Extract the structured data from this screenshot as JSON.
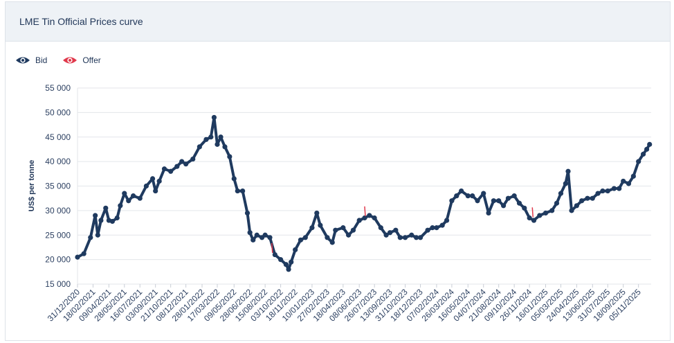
{
  "header": {
    "title": "LME Tin Official Prices curve"
  },
  "legend": [
    {
      "label": "Bid",
      "color": "#1f3a5f",
      "icon": "eye-icon"
    },
    {
      "label": "Offer",
      "color": "#e0384b",
      "icon": "eye-icon"
    }
  ],
  "colors": {
    "bid": "#1f3a5f",
    "offer": "#e0384b",
    "grid": "#e3e6ea"
  },
  "chart_data": {
    "type": "line",
    "title": "LME Tin Official Prices curve",
    "ylabel": "US$ per tonne",
    "xlabel": "",
    "ylim": [
      15000,
      55000
    ],
    "xlim": [
      "2020-12-31",
      "2025-12-15"
    ],
    "yticks": [
      "15 000",
      "20 000",
      "25 000",
      "30 000",
      "35 000",
      "40 000",
      "45 000",
      "50 000",
      "55 000"
    ],
    "yticks_values": [
      15000,
      20000,
      25000,
      30000,
      35000,
      40000,
      45000,
      50000,
      55000
    ],
    "xticks": [
      "31/12/2020",
      "18/02/2021",
      "09/04/2021",
      "28/05/2021",
      "16/07/2021",
      "03/09/2021",
      "21/10/2021",
      "08/12/2021",
      "28/01/2022",
      "17/03/2022",
      "09/05/2022",
      "28/06/2022",
      "15/08/2022",
      "03/10/2022",
      "18/11/2022",
      "10/01/2023",
      "27/02/2023",
      "18/04/2023",
      "08/06/2023",
      "26/07/2023",
      "13/09/2023",
      "31/10/2023",
      "18/12/2023",
      "07/02/2024",
      "26/03/2024",
      "16/05/2024",
      "04/07/2024",
      "21/08/2024",
      "09/10/2024",
      "26/11/2024",
      "16/01/2025",
      "05/03/2025",
      "24/04/2025",
      "13/06/2025",
      "31/07/2025",
      "18/09/2025",
      "05/11/2025"
    ],
    "grid": true,
    "legend_position": "top-left",
    "series": [
      {
        "name": "Bid",
        "x": [
          "2020-12-31",
          "2021-01-20",
          "2021-02-10",
          "2021-02-25",
          "2021-03-05",
          "2021-03-15",
          "2021-03-30",
          "2021-04-09",
          "2021-04-20",
          "2021-05-05",
          "2021-05-15",
          "2021-05-28",
          "2021-06-10",
          "2021-06-25",
          "2021-07-16",
          "2021-08-05",
          "2021-08-25",
          "2021-09-03",
          "2021-09-15",
          "2021-10-01",
          "2021-10-21",
          "2021-11-10",
          "2021-11-25",
          "2021-12-08",
          "2021-12-30",
          "2022-01-20",
          "2022-02-10",
          "2022-02-25",
          "2022-03-07",
          "2022-03-17",
          "2022-03-28",
          "2022-04-10",
          "2022-04-25",
          "2022-05-09",
          "2022-05-20",
          "2022-06-05",
          "2022-06-20",
          "2022-06-28",
          "2022-07-08",
          "2022-07-20",
          "2022-08-05",
          "2022-08-15",
          "2022-08-30",
          "2022-09-15",
          "2022-10-03",
          "2022-10-20",
          "2022-10-28",
          "2022-11-05",
          "2022-11-18",
          "2022-12-05",
          "2022-12-20",
          "2023-01-10",
          "2023-01-25",
          "2023-02-05",
          "2023-02-27",
          "2023-03-15",
          "2023-03-25",
          "2023-04-18",
          "2023-05-05",
          "2023-05-20",
          "2023-06-08",
          "2023-06-25",
          "2023-07-10",
          "2023-07-26",
          "2023-08-15",
          "2023-09-01",
          "2023-09-13",
          "2023-10-01",
          "2023-10-15",
          "2023-10-31",
          "2023-11-20",
          "2023-12-05",
          "2023-12-18",
          "2024-01-10",
          "2024-01-25",
          "2024-02-07",
          "2024-02-25",
          "2024-03-10",
          "2024-03-26",
          "2024-04-10",
          "2024-04-25",
          "2024-05-16",
          "2024-05-30",
          "2024-06-15",
          "2024-07-04",
          "2024-07-20",
          "2024-08-05",
          "2024-08-21",
          "2024-09-05",
          "2024-09-20",
          "2024-10-09",
          "2024-10-25",
          "2024-11-10",
          "2024-11-26",
          "2024-12-10",
          "2024-12-28",
          "2025-01-16",
          "2025-02-05",
          "2025-02-20",
          "2025-03-05",
          "2025-03-20",
          "2025-03-28",
          "2025-04-08",
          "2025-04-24",
          "2025-05-10",
          "2025-05-28",
          "2025-06-13",
          "2025-06-30",
          "2025-07-15",
          "2025-07-31",
          "2025-08-20",
          "2025-09-05",
          "2025-09-18",
          "2025-10-05",
          "2025-10-20",
          "2025-11-05",
          "2025-11-20",
          "2025-12-01",
          "2025-12-10"
        ],
        "values": [
          20500,
          21200,
          24500,
          29000,
          25000,
          28000,
          30500,
          28000,
          27800,
          28500,
          31000,
          33500,
          32000,
          33000,
          32500,
          35000,
          36500,
          34000,
          36000,
          38500,
          38000,
          39000,
          40000,
          39500,
          40500,
          43000,
          44500,
          45000,
          49000,
          43500,
          45000,
          43000,
          41000,
          36500,
          34000,
          34000,
          29500,
          25500,
          24000,
          25000,
          24500,
          25000,
          24500,
          21000,
          20000,
          19000,
          18000,
          19500,
          22000,
          24000,
          24500,
          26500,
          29500,
          27000,
          24500,
          23500,
          26000,
          26500,
          25000,
          26000,
          28000,
          28500,
          29000,
          28500,
          26500,
          25000,
          25500,
          26000,
          24500,
          24500,
          25000,
          24500,
          24500,
          26000,
          26500,
          26500,
          27000,
          28000,
          32000,
          33000,
          34000,
          33000,
          33000,
          32000,
          33500,
          29500,
          32000,
          32000,
          31000,
          32500,
          33000,
          31500,
          30500,
          28500,
          28000,
          29000,
          29500,
          30000,
          31500,
          33500,
          35500,
          38000,
          30000,
          31000,
          32000,
          32500,
          32500,
          33500,
          34000,
          34000,
          34500,
          34500,
          36000,
          35500,
          37000,
          40000,
          41500,
          42500,
          43500
        ]
      },
      {
        "name": "Offer",
        "x": [
          "2022-09-05",
          "2023-06-25",
          "2024-12-05"
        ],
        "values": [
          22500,
          30000,
          29800
        ]
      }
    ]
  }
}
